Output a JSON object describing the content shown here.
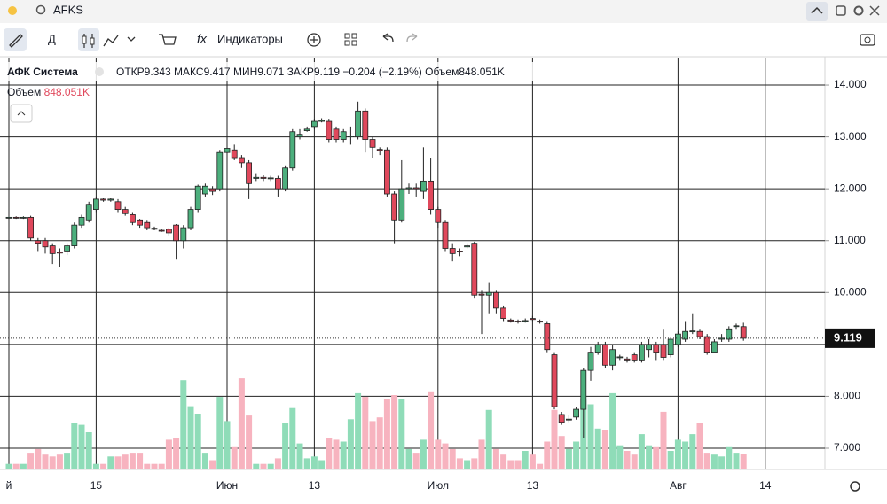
{
  "ui": {
    "search": "AFKS",
    "interval": "Д",
    "indicators": "Индикаторы",
    "symbol": "АФК Система",
    "legend": {
      "open": "ОТКР",
      "high": "МАКС",
      "low": "МИН",
      "close": "ЗАКР",
      "change": "−0.204",
      "change_pct": "(−2.19%)",
      "volume": "Объем"
    }
  },
  "chart_data": {
    "type": "candlestick",
    "categories": [
      "й",
      null,
      null,
      null,
      null,
      null,
      null,
      null,
      null,
      null,
      null,
      null,
      "15",
      null,
      null,
      null,
      null,
      null,
      null,
      null,
      null,
      null,
      null,
      null,
      null,
      null,
      null,
      null,
      null,
      null,
      "Июн",
      null,
      null,
      null,
      null,
      null,
      null,
      null,
      null,
      null,
      null,
      null,
      "13",
      null,
      null,
      null,
      null,
      null,
      null,
      null,
      null,
      null,
      null,
      null,
      null,
      null,
      null,
      null,
      null,
      "Июл",
      null,
      null,
      null,
      null,
      null,
      null,
      null,
      null,
      null,
      null,
      null,
      null,
      "13",
      null,
      null,
      null,
      null,
      null,
      null,
      null,
      null,
      null,
      null,
      null,
      null,
      null,
      null,
      null,
      null,
      null,
      null,
      null,
      "Авг",
      null,
      null,
      null,
      null,
      null,
      null,
      null,
      null,
      null,
      null,
      null,
      "14",
      null
    ],
    "open": [
      11.45,
      11.45,
      11.44,
      11.45,
      11.0,
      11.0,
      10.9,
      10.78,
      10.8,
      10.9,
      11.3,
      11.4,
      11.6,
      11.8,
      11.78,
      11.75,
      11.6,
      11.5,
      11.4,
      11.35,
      11.24,
      11.2,
      11.22,
      11.3,
      11.0,
      11.25,
      11.6,
      11.9,
      12.0,
      12.0,
      12.7,
      12.75,
      12.6,
      12.5,
      12.2,
      12.22,
      12.2,
      12.2,
      12.0,
      12.4,
      13.0,
      13.12,
      13.2,
      13.3,
      13.3,
      13.15,
      12.95,
      13.0,
      13.0,
      13.5,
      12.95,
      12.76,
      12.75,
      11.9,
      11.4,
      12.0,
      12.02,
      11.95,
      12.15,
      11.6,
      11.35,
      10.85,
      10.8,
      10.88,
      10.95,
      9.97,
      9.95,
      10.0,
      9.7,
      9.47,
      9.45,
      9.45,
      9.5,
      9.45,
      9.4,
      8.8,
      7.65,
      7.55,
      7.6,
      7.75,
      8.5,
      8.85,
      9.0,
      8.6,
      8.75,
      8.72,
      8.8,
      8.7,
      8.9,
      9.0,
      9.0,
      8.8,
      9.0,
      9.1,
      9.25,
      9.25,
      9.15,
      8.85,
      9.1,
      9.1,
      9.35,
      9.343,
      null,
      null,
      null,
      null
    ],
    "high": [
      11.47,
      11.47,
      11.47,
      11.48,
      11.05,
      11.05,
      10.95,
      10.85,
      10.95,
      11.35,
      11.5,
      11.75,
      11.85,
      11.83,
      11.83,
      11.8,
      11.65,
      11.55,
      11.42,
      11.4,
      11.27,
      11.23,
      11.25,
      11.32,
      11.3,
      11.65,
      12.08,
      12.1,
      12.05,
      12.75,
      12.9,
      12.85,
      12.65,
      12.55,
      12.3,
      12.26,
      12.25,
      12.25,
      12.45,
      13.15,
      13.15,
      13.2,
      13.35,
      13.36,
      13.35,
      13.2,
      13.15,
      13.2,
      13.68,
      13.55,
      13.0,
      12.8,
      12.8,
      11.95,
      12.55,
      12.1,
      12.1,
      12.8,
      12.6,
      11.65,
      11.4,
      10.95,
      10.85,
      10.95,
      10.98,
      10.05,
      10.2,
      10.05,
      9.75,
      9.5,
      9.48,
      9.5,
      9.55,
      9.48,
      9.45,
      8.85,
      7.7,
      7.65,
      7.8,
      8.55,
      8.95,
      9.05,
      9.05,
      9.0,
      8.8,
      8.76,
      8.85,
      9.05,
      9.1,
      9.05,
      9.3,
      9.15,
      9.25,
      9.45,
      9.6,
      9.3,
      9.2,
      9.1,
      9.2,
      9.35,
      9.4,
      9.417,
      null,
      null,
      null,
      null
    ],
    "low": [
      11.43,
      11.42,
      11.42,
      11.0,
      10.8,
      10.75,
      10.55,
      10.5,
      10.72,
      10.85,
      11.25,
      11.35,
      11.55,
      11.75,
      11.75,
      11.55,
      11.48,
      11.3,
      11.25,
      11.2,
      11.2,
      11.17,
      11.1,
      10.65,
      10.85,
      11.2,
      11.55,
      11.85,
      11.88,
      11.95,
      12.65,
      12.55,
      12.4,
      11.8,
      12.15,
      12.15,
      12.15,
      11.85,
      11.95,
      12.35,
      12.95,
      13.1,
      13.15,
      13.28,
      12.9,
      12.9,
      12.9,
      12.85,
      12.95,
      12.7,
      12.6,
      12.65,
      11.85,
      10.95,
      11.35,
      11.9,
      11.85,
      11.8,
      11.5,
      11.25,
      10.8,
      10.6,
      10.7,
      10.85,
      9.9,
      9.2,
      9.6,
      9.6,
      9.45,
      9.42,
      9.4,
      9.42,
      9.45,
      9.4,
      8.85,
      7.75,
      7.45,
      7.5,
      7.55,
      7.2,
      8.3,
      8.8,
      8.55,
      8.5,
      8.7,
      8.65,
      8.65,
      8.65,
      8.75,
      8.7,
      8.7,
      8.75,
      8.95,
      9.05,
      9.2,
      9.1,
      8.8,
      8.85,
      9.05,
      9.05,
      9.3,
      9.071,
      null,
      null,
      null,
      null
    ],
    "close": [
      11.45,
      11.44,
      11.45,
      11.05,
      10.95,
      10.88,
      10.75,
      10.76,
      10.9,
      11.3,
      11.45,
      11.7,
      11.8,
      11.78,
      11.8,
      11.6,
      11.52,
      11.35,
      11.3,
      11.25,
      11.22,
      11.19,
      11.15,
      11.0,
      11.25,
      11.6,
      12.05,
      12.05,
      11.95,
      12.7,
      12.78,
      12.6,
      12.5,
      12.1,
      12.22,
      12.2,
      12.21,
      12.0,
      12.4,
      13.1,
      13.05,
      13.15,
      13.3,
      13.32,
      12.95,
      12.95,
      13.1,
      13.02,
      13.5,
      12.95,
      12.8,
      12.74,
      11.9,
      11.4,
      12.0,
      12.02,
      12.0,
      12.15,
      11.6,
      11.35,
      10.85,
      10.75,
      10.78,
      10.9,
      9.95,
      9.95,
      10.0,
      9.7,
      9.5,
      9.45,
      9.44,
      9.46,
      9.48,
      9.43,
      8.9,
      7.8,
      7.5,
      7.56,
      7.75,
      8.5,
      8.85,
      9.0,
      8.6,
      8.9,
      8.76,
      8.7,
      8.7,
      9.0,
      9.0,
      8.85,
      8.75,
      9.1,
      9.2,
      9.25,
      9.26,
      9.15,
      8.85,
      9.05,
      9.12,
      9.3,
      9.36,
      9.119,
      null,
      null,
      null,
      null
    ],
    "volume": {
      "name": "Объем",
      "value_labels": {
        "101": "848.051K"
      },
      "values": [
        300000,
        300000,
        300000,
        900000,
        1100000,
        800000,
        700000,
        800000,
        900000,
        2500000,
        2400000,
        2000000,
        300000,
        300000,
        700000,
        700000,
        800000,
        900000,
        900000,
        300000,
        300000,
        300000,
        1600000,
        1700000,
        4800000,
        3400000,
        3000000,
        900000,
        500000,
        3900000,
        2600000,
        1200000,
        4900000,
        2900000,
        300000,
        300000,
        300000,
        600000,
        2500000,
        3300000,
        1400000,
        600000,
        700000,
        500000,
        1700000,
        1600000,
        1500000,
        2700000,
        4100000,
        3900000,
        2600000,
        2800000,
        3800000,
        4000000,
        3800000,
        1100000,
        900000,
        1600000,
        4200000,
        1600000,
        1400000,
        1100000,
        600000,
        500000,
        600000,
        1600000,
        3200000,
        1100000,
        800000,
        500000,
        500000,
        1000000,
        800000,
        300000,
        1500000,
        3200000,
        1800000,
        1100000,
        1500000,
        3800000,
        3500000,
        2200000,
        2100000,
        4100000,
        1300000,
        1000000,
        800000,
        1900000,
        1300000,
        1200000,
        3100000,
        1000000,
        1600000,
        1500000,
        1900000,
        2500000,
        900000,
        800000,
        700000,
        1200000,
        900000,
        848051,
        null,
        null,
        null,
        null
      ],
      "vlim": [
        0,
        5000000
      ]
    },
    "up_color": "#4caf7d",
    "down_color": "#e0485c",
    "volume_up_color": "#8fdcb8",
    "volume_down_color": "#f7b3bf",
    "ylim": [
      6.59,
      14.53
    ],
    "yticks": [
      {
        "value": 7,
        "label": "7.000"
      },
      {
        "value": 8,
        "label": "8.000"
      },
      {
        "value": 9,
        "label": "9.000"
      },
      {
        "value": 10,
        "label": "10.000"
      },
      {
        "value": 11,
        "label": "11.000"
      },
      {
        "value": 12,
        "label": "12.000"
      },
      {
        "value": 13,
        "label": "13.000"
      },
      {
        "value": 14,
        "label": "14.000"
      }
    ],
    "grid": true
  }
}
